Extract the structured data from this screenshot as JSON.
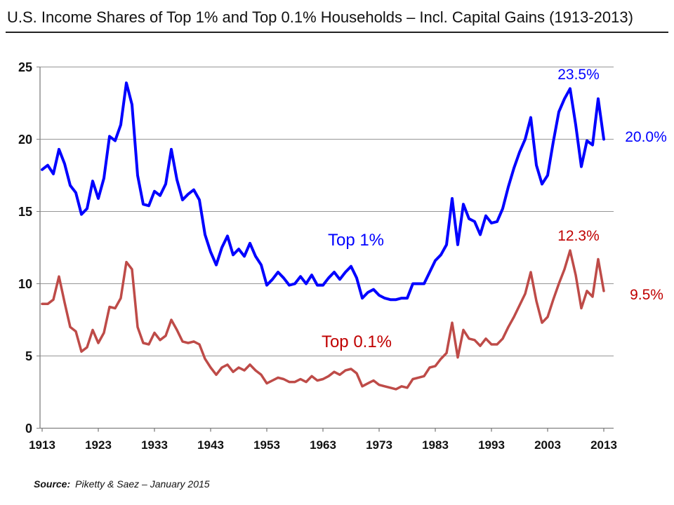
{
  "header": {
    "title": "U.S. Income Shares of Top 1% and Top 0.1% Households – Incl. Capital Gains (1913-2013)"
  },
  "footer": {
    "source_label": "Source:",
    "source_text": "Piketty & Saez – January 2015"
  },
  "colors": {
    "top1_line": "#0000FF",
    "top01_line": "#BE4B48",
    "blue_text": "#0000FF",
    "red_text": "#C00000",
    "grid": "#969696",
    "axis": "#808080"
  },
  "annotations": {
    "top1_label": "Top 1%",
    "top01_label": "Top 0.1%",
    "top1_2007": "23.5%",
    "top1_2013": "20.0%",
    "top01_2007": "12.3%",
    "top01_2013": "9.5%"
  },
  "chart_data": {
    "type": "line",
    "title": "U.S. Income Shares of Top 1% and Top 0.1% Households – Incl. Capital Gains (1913-2013)",
    "xlabel": "",
    "ylabel": "",
    "x_start": 1913,
    "x_end": 2013,
    "x_ticks": [
      1913,
      1923,
      1933,
      1943,
      1953,
      1963,
      1973,
      1983,
      1993,
      2003,
      2013
    ],
    "y_ticks": [
      25,
      20,
      15,
      10,
      5,
      0
    ],
    "ylim": [
      0,
      25
    ],
    "grid": "horizontal",
    "legend_position": "inline-labels",
    "source": "Piketty & Saez – January 2015",
    "series": [
      {
        "name": "Top 1%",
        "color": "#0000FF",
        "values": [
          17.9,
          18.2,
          17.6,
          19.3,
          18.3,
          16.8,
          16.3,
          14.8,
          15.2,
          17.1,
          15.9,
          17.3,
          20.2,
          19.9,
          21.0,
          23.9,
          22.4,
          17.5,
          15.5,
          15.4,
          16.4,
          16.1,
          16.9,
          19.3,
          17.2,
          15.8,
          16.2,
          16.5,
          15.8,
          13.4,
          12.2,
          11.3,
          12.5,
          13.3,
          12.0,
          12.4,
          11.9,
          12.8,
          11.9,
          11.3,
          9.9,
          10.3,
          10.8,
          10.4,
          9.9,
          10.0,
          10.5,
          10.0,
          10.6,
          9.9,
          9.9,
          10.4,
          10.8,
          10.3,
          10.8,
          11.2,
          10.4,
          9.0,
          9.4,
          9.6,
          9.2,
          9.0,
          8.9,
          8.9,
          9.0,
          9.0,
          10.0,
          10.0,
          10.0,
          10.8,
          11.6,
          12.0,
          12.7,
          15.9,
          12.7,
          15.5,
          14.5,
          14.3,
          13.4,
          14.7,
          14.2,
          14.3,
          15.2,
          16.7,
          18.0,
          19.1,
          20.0,
          21.5,
          18.2,
          16.9,
          17.5,
          19.8,
          21.9,
          22.8,
          23.5,
          21.0,
          18.1,
          19.9,
          19.6,
          22.8,
          20.0
        ]
      },
      {
        "name": "Top 0.1%",
        "color": "#BE4B48",
        "values": [
          8.6,
          8.6,
          8.9,
          10.5,
          8.7,
          7.0,
          6.7,
          5.3,
          5.6,
          6.8,
          5.9,
          6.6,
          8.4,
          8.3,
          9.0,
          11.5,
          11.0,
          7.0,
          5.9,
          5.8,
          6.6,
          6.1,
          6.4,
          7.5,
          6.8,
          6.0,
          5.9,
          6.0,
          5.8,
          4.8,
          4.2,
          3.7,
          4.2,
          4.4,
          3.9,
          4.2,
          4.0,
          4.4,
          4.0,
          3.7,
          3.1,
          3.3,
          3.5,
          3.4,
          3.2,
          3.2,
          3.4,
          3.2,
          3.6,
          3.3,
          3.4,
          3.6,
          3.9,
          3.7,
          4.0,
          4.1,
          3.8,
          2.9,
          3.1,
          3.3,
          3.0,
          2.9,
          2.8,
          2.7,
          2.9,
          2.8,
          3.4,
          3.5,
          3.6,
          4.2,
          4.3,
          4.8,
          5.2,
          7.3,
          4.9,
          6.8,
          6.2,
          6.1,
          5.7,
          6.2,
          5.8,
          5.8,
          6.2,
          7.0,
          7.7,
          8.5,
          9.3,
          10.8,
          8.8,
          7.3,
          7.7,
          8.9,
          10.0,
          11.0,
          12.3,
          10.6,
          8.3,
          9.5,
          9.1,
          11.7,
          9.5
        ]
      }
    ]
  }
}
